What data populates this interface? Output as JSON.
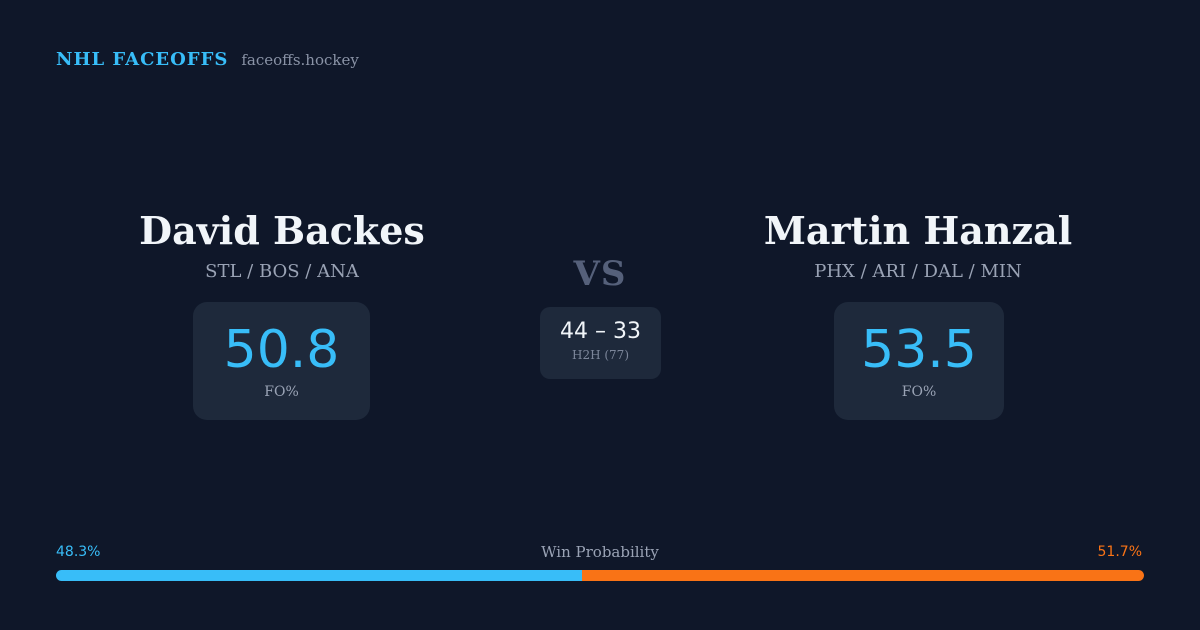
{
  "brand": {
    "name": "NHL FACEOFFS",
    "site": "faceoffs.hockey"
  },
  "colors": {
    "background": "#0f1729",
    "accent_left": "#38bdf8",
    "accent_right": "#f97316",
    "card": "#1e293b"
  },
  "player_left": {
    "name": "David Backes",
    "teams": "STL / BOS / ANA",
    "fo_pct": "50.8",
    "fo_label": "FO%"
  },
  "player_right": {
    "name": "Martin Hanzal",
    "teams": "PHX / ARI / DAL / MIN",
    "fo_pct": "53.5",
    "fo_label": "FO%"
  },
  "matchup": {
    "vs": "VS",
    "h2h_score": "44 – 33",
    "h2h_label": "H2H (77)"
  },
  "win_probability": {
    "title": "Win Probability",
    "left_label": "48.3%",
    "right_label": "51.7%",
    "left_fraction": 0.483,
    "right_fraction": 0.517
  }
}
